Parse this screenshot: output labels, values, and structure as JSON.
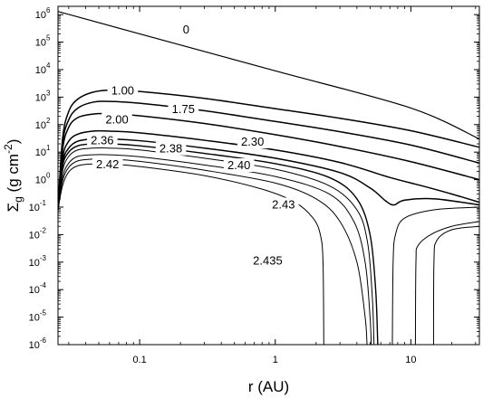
{
  "chart_data": {
    "type": "line",
    "xlabel": "r (AU)",
    "ylabel": {
      "main": "Σ",
      "sub": "g",
      "rest": " (g cm",
      "sup": "-2",
      "end": ")"
    },
    "x_scale": "log",
    "y_scale": "log",
    "xlim": [
      0.025,
      32
    ],
    "ylim": [
      1e-06,
      2000000.0
    ],
    "x_ticks": [
      {
        "value": 0.1,
        "label": "0.1"
      },
      {
        "value": 1,
        "label": "1"
      },
      {
        "value": 10,
        "label": "10"
      }
    ],
    "y_ticks": [
      {
        "exp": -6,
        "label": "10",
        "sup": "-6"
      },
      {
        "exp": -5,
        "label": "10",
        "sup": "-5"
      },
      {
        "exp": -4,
        "label": "10",
        "sup": "-4"
      },
      {
        "exp": -3,
        "label": "10",
        "sup": "-3"
      },
      {
        "exp": -2,
        "label": "10",
        "sup": "-2"
      },
      {
        "exp": -1,
        "label": "10",
        "sup": "-1"
      },
      {
        "exp": 0,
        "label": "10",
        "sup": "0"
      },
      {
        "exp": 1,
        "label": "10",
        "sup": "1"
      },
      {
        "exp": 2,
        "label": "10",
        "sup": "2"
      },
      {
        "exp": 3,
        "label": "10",
        "sup": "3"
      },
      {
        "exp": 4,
        "label": "10",
        "sup": "4"
      },
      {
        "exp": 5,
        "label": "10",
        "sup": "5"
      },
      {
        "exp": 6,
        "label": "10",
        "sup": "6"
      }
    ],
    "series": [
      {
        "name": "0",
        "label_at": [
          0.22,
          300000.0
        ],
        "points": [
          [
            0.025,
            1300000.0
          ],
          [
            0.1,
            200000.0
          ],
          [
            1,
            9000.0
          ],
          [
            10,
            400.0
          ],
          [
            32,
            30.0
          ]
        ]
      },
      {
        "name": "1.00",
        "label_at": [
          0.075,
          1800.0
        ],
        "points": [
          [
            0.025,
            0.08
          ],
          [
            0.027,
            30.0
          ],
          [
            0.03,
            300.0
          ],
          [
            0.035,
            850.0
          ],
          [
            0.045,
            1500.0
          ],
          [
            0.06,
            1800.0
          ],
          [
            0.1,
            1600.0
          ],
          [
            0.3,
            900.0
          ],
          [
            1,
            380.0
          ],
          [
            3,
            170.0
          ],
          [
            10,
            60.0
          ],
          [
            32,
            15.0
          ]
        ]
      },
      {
        "name": "1.75",
        "label_at": [
          0.21,
          380.0
        ],
        "points": [
          [
            0.025,
            0.08
          ],
          [
            0.027,
            20.0
          ],
          [
            0.03,
            150.0
          ],
          [
            0.035,
            400.0
          ],
          [
            0.045,
            650.0
          ],
          [
            0.06,
            700.0
          ],
          [
            0.1,
            600.0
          ],
          [
            0.3,
            320.0
          ],
          [
            1,
            130.0
          ],
          [
            3,
            55.0
          ],
          [
            10,
            18.0
          ],
          [
            32,
            4.0
          ]
        ]
      },
      {
        "name": "2.00",
        "label_at": [
          0.068,
          160.0
        ],
        "points": [
          [
            0.025,
            0.08
          ],
          [
            0.027,
            12.0
          ],
          [
            0.03,
            80.0
          ],
          [
            0.035,
            180.0
          ],
          [
            0.045,
            240.0
          ],
          [
            0.06,
            250.0
          ],
          [
            0.1,
            210.0
          ],
          [
            0.3,
            110.0
          ],
          [
            1,
            43.0
          ],
          [
            3,
            16.0
          ],
          [
            10,
            4.5
          ],
          [
            32,
            1.0
          ]
        ]
      },
      {
        "name": "2.30",
        "label_at": [
          0.68,
          25.0
        ],
        "points": [
          [
            0.025,
            0.08
          ],
          [
            0.027,
            6.0
          ],
          [
            0.03,
            25.0
          ],
          [
            0.035,
            45.0
          ],
          [
            0.045,
            58.0
          ],
          [
            0.06,
            58.0
          ],
          [
            0.1,
            50.0
          ],
          [
            0.3,
            27.0
          ],
          [
            1,
            12.0
          ],
          [
            3,
            4.2
          ],
          [
            7,
            1.2
          ],
          [
            12,
            0.6
          ],
          [
            20,
            0.3
          ],
          [
            32,
            0.15
          ]
        ]
      },
      {
        "name": "2.36",
        "label_at": [
          0.053,
          28.0
        ],
        "points": [
          [
            0.025,
            0.08
          ],
          [
            0.027,
            4.0
          ],
          [
            0.03,
            14.0
          ],
          [
            0.035,
            25.0
          ],
          [
            0.045,
            30.0
          ],
          [
            0.06,
            30.0
          ],
          [
            0.1,
            26.0
          ],
          [
            0.3,
            14.0
          ],
          [
            1,
            6.0
          ],
          [
            3,
            1.8
          ],
          [
            5,
            0.5
          ],
          [
            6.5,
            0.17
          ],
          [
            7.5,
            0.12
          ],
          [
            9,
            0.18
          ],
          [
            15,
            0.2
          ],
          [
            32,
            0.12
          ]
        ]
      },
      {
        "name": "2.38",
        "label_at": [
          0.17,
          14.0
        ],
        "points": [
          [
            0.025,
            0.08
          ],
          [
            0.027,
            3.0
          ],
          [
            0.03,
            10.0
          ],
          [
            0.035,
            17.0
          ],
          [
            0.045,
            20.0
          ],
          [
            0.06,
            20.0
          ],
          [
            0.1,
            17.0
          ],
          [
            0.3,
            9.0
          ],
          [
            1,
            3.8
          ],
          [
            2.5,
            1.2
          ],
          [
            4,
            0.2
          ],
          [
            5,
            0.01
          ],
          [
            5.5,
            0.0001
          ],
          [
            5.7,
            1e-06
          ]
        ]
      },
      {
        "name": "2.40",
        "label_at": [
          0.54,
          3.5
        ],
        "points": [
          [
            0.025,
            0.08
          ],
          [
            0.027,
            2.0
          ],
          [
            0.03,
            7.0
          ],
          [
            0.035,
            12.0
          ],
          [
            0.045,
            14.0
          ],
          [
            0.06,
            14.0
          ],
          [
            0.1,
            12.0
          ],
          [
            0.3,
            6.0
          ],
          [
            1,
            2.4
          ],
          [
            2.5,
            0.6
          ],
          [
            4,
            0.08
          ],
          [
            4.8,
            0.005
          ],
          [
            5.2,
            5e-05
          ],
          [
            5.35,
            1e-06
          ]
        ]
      },
      {
        "name": "2.42",
        "label_at": [
          0.058,
          3.8
        ],
        "points": [
          [
            0.025,
            0.08
          ],
          [
            0.027,
            1.2
          ],
          [
            0.03,
            4.0
          ],
          [
            0.035,
            7.0
          ],
          [
            0.045,
            8.0
          ],
          [
            0.06,
            8.0
          ],
          [
            0.1,
            6.8
          ],
          [
            0.3,
            3.4
          ],
          [
            1,
            1.3
          ],
          [
            2.5,
            0.3
          ],
          [
            3.8,
            0.03
          ],
          [
            4.6,
            0.001
          ],
          [
            5.0,
            1e-05
          ],
          [
            5.1,
            1e-06
          ]
        ]
      },
      {
        "name": "2.43",
        "label_at": [
          1.15,
          0.13
        ],
        "points": [
          [
            0.025,
            0.08
          ],
          [
            0.027,
            0.9
          ],
          [
            0.03,
            2.8
          ],
          [
            0.035,
            4.8
          ],
          [
            0.045,
            5.6
          ],
          [
            0.06,
            5.6
          ],
          [
            0.1,
            4.6
          ],
          [
            0.3,
            2.2
          ],
          [
            1,
            0.75
          ],
          [
            2,
            0.2
          ],
          [
            3,
            0.03
          ],
          [
            4,
            0.001
          ],
          [
            4.6,
            1e-05
          ],
          [
            4.75,
            1e-06
          ]
        ]
      },
      {
        "name": "2.435",
        "label_at": [
          0.88,
          0.0012
        ],
        "points": [
          [
            0.025,
            0.08
          ],
          [
            0.027,
            0.6
          ],
          [
            0.03,
            1.9
          ],
          [
            0.035,
            3.2
          ],
          [
            0.045,
            3.7
          ],
          [
            0.06,
            3.7
          ],
          [
            0.1,
            3.0
          ],
          [
            0.3,
            1.4
          ],
          [
            0.8,
            0.45
          ],
          [
            1.4,
            0.15
          ],
          [
            1.9,
            0.04
          ],
          [
            2.15,
            0.01
          ],
          [
            2.25,
            0.001
          ],
          [
            2.28,
            1e-06
          ]
        ]
      },
      {
        "name": "",
        "points": [
          [
            7.3,
            1e-06
          ],
          [
            7.4,
            0.001
          ],
          [
            7.7,
            0.01
          ],
          [
            9,
            0.04
          ],
          [
            15,
            0.08
          ],
          [
            32,
            0.1
          ]
        ]
      },
      {
        "name": "",
        "points": [
          [
            10.8,
            1e-06
          ],
          [
            10.9,
            0.001
          ],
          [
            11.3,
            0.004
          ],
          [
            14,
            0.01
          ],
          [
            20,
            0.02
          ],
          [
            32,
            0.03
          ]
        ]
      },
      {
        "name": "",
        "points": [
          [
            14.7,
            1e-06
          ],
          [
            14.8,
            0.001
          ],
          [
            15.5,
            0.006
          ],
          [
            20,
            0.015
          ],
          [
            32,
            0.02
          ]
        ]
      }
    ]
  }
}
